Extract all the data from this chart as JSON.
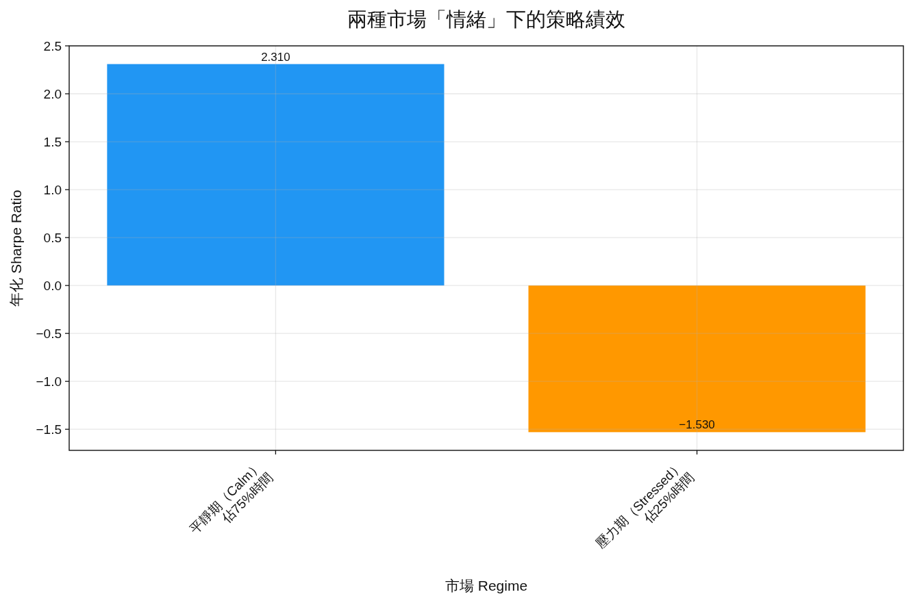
{
  "chart_data": {
    "type": "bar",
    "title": "兩種市場「情緒」下的策略績效",
    "xlabel": "市場 Regime",
    "ylabel": "年化 Sharpe Ratio",
    "categories": [
      "平靜期（Calm）\n佔75%時間",
      "壓力期（Stressed）\n佔25%時間"
    ],
    "values": [
      2.31,
      -1.53
    ],
    "colors": [
      "#2196f3",
      "#ff9800"
    ],
    "value_labels": [
      "2.310",
      "−1.530"
    ],
    "ylim": [
      -1.72,
      2.5
    ],
    "yticks": [
      {
        "value": -1.5,
        "label": "−1.5"
      },
      {
        "value": -1,
        "label": "−1.0"
      },
      {
        "value": -0.5,
        "label": "−0.5"
      },
      {
        "value": 0,
        "label": "0.0"
      },
      {
        "value": 0.5,
        "label": "0.5"
      },
      {
        "value": 1,
        "label": "1.0"
      },
      1.5,
      {
        "value": 2,
        "label": "2.0"
      },
      2.5
    ],
    "grid": true
  }
}
